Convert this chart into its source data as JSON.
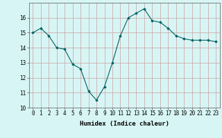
{
  "x": [
    0,
    1,
    2,
    3,
    4,
    5,
    6,
    7,
    8,
    9,
    10,
    11,
    12,
    13,
    14,
    15,
    16,
    17,
    18,
    19,
    20,
    21,
    22,
    23
  ],
  "y": [
    15.0,
    15.3,
    14.8,
    14.0,
    13.9,
    12.9,
    12.6,
    11.1,
    10.5,
    11.4,
    13.0,
    14.8,
    16.0,
    16.3,
    16.6,
    15.8,
    15.7,
    15.3,
    14.8,
    14.6,
    14.5,
    14.5,
    14.5,
    14.4
  ],
  "line_color": "#006060",
  "marker": "D",
  "marker_size": 1.8,
  "bg_color": "#d8f5f5",
  "grid_color": "#c8a0a0",
  "xlabel": "Humidex (Indice chaleur)",
  "ylim": [
    10,
    17
  ],
  "xlim_min": -0.5,
  "xlim_max": 23.5,
  "yticks": [
    10,
    11,
    12,
    13,
    14,
    15,
    16
  ],
  "xtick_labels": [
    "0",
    "1",
    "2",
    "3",
    "4",
    "5",
    "6",
    "7",
    "8",
    "9",
    "10",
    "11",
    "12",
    "13",
    "14",
    "15",
    "16",
    "17",
    "18",
    "19",
    "20",
    "21",
    "22",
    "23"
  ],
  "xlabel_fontsize": 6.5,
  "tick_fontsize": 5.5,
  "line_width": 0.8
}
